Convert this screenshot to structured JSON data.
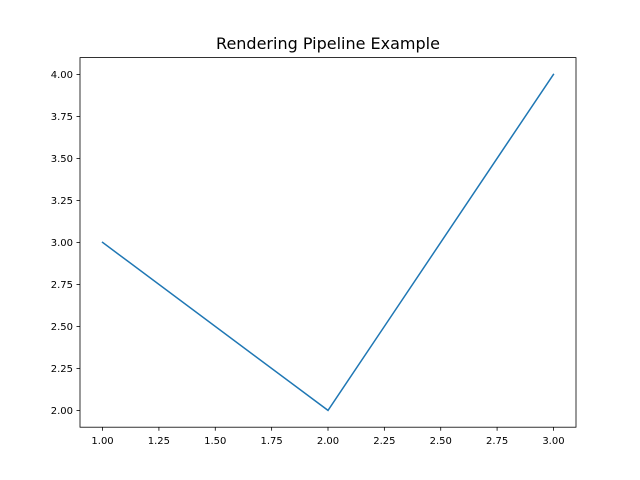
{
  "chart_data": {
    "type": "line",
    "title": "Rendering Pipeline Example",
    "xlabel": "",
    "ylabel": "",
    "x": [
      1,
      2,
      3
    ],
    "series": [
      {
        "values": [
          3,
          2,
          4
        ],
        "color": "#1f77b4"
      }
    ],
    "xlim": [
      0.9,
      3.1
    ],
    "ylim": [
      1.9,
      4.1
    ],
    "xticks": [
      1.0,
      1.25,
      1.5,
      1.75,
      2.0,
      2.25,
      2.5,
      2.75,
      3.0
    ],
    "xtick_labels": [
      "1.00",
      "1.25",
      "1.50",
      "1.75",
      "2.00",
      "2.25",
      "2.50",
      "2.75",
      "3.00"
    ],
    "yticks": [
      2.0,
      2.25,
      2.5,
      2.75,
      3.0,
      3.25,
      3.5,
      3.75,
      4.0
    ],
    "ytick_labels": [
      "2.00",
      "2.25",
      "2.50",
      "2.75",
      "3.00",
      "3.25",
      "3.50",
      "3.75",
      "4.00"
    ],
    "grid": false,
    "legend": "none"
  }
}
